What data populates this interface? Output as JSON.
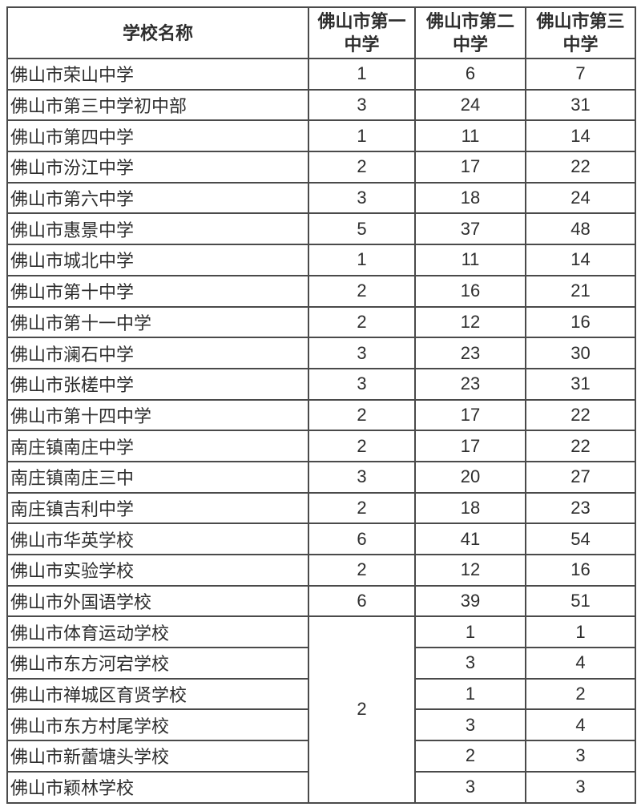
{
  "table": {
    "header": {
      "col0": "学校名称",
      "col1": "佛山市第一中学",
      "col2": "佛山市第二中学",
      "col3": "佛山市第三中学"
    },
    "rows": [
      {
        "name": "佛山市荣山中学",
        "v1": "1",
        "v2": "6",
        "v3": "7"
      },
      {
        "name": "佛山市第三中学初中部",
        "v1": "3",
        "v2": "24",
        "v3": "31"
      },
      {
        "name": "佛山市第四中学",
        "v1": "1",
        "v2": "11",
        "v3": "14"
      },
      {
        "name": "佛山市汾江中学",
        "v1": "2",
        "v2": "17",
        "v3": "22"
      },
      {
        "name": "佛山市第六中学",
        "v1": "3",
        "v2": "18",
        "v3": "24"
      },
      {
        "name": "佛山市惠景中学",
        "v1": "5",
        "v2": "37",
        "v3": "48"
      },
      {
        "name": "佛山市城北中学",
        "v1": "1",
        "v2": "11",
        "v3": "14"
      },
      {
        "name": "佛山市第十中学",
        "v1": "2",
        "v2": "16",
        "v3": "21"
      },
      {
        "name": "佛山市第十一中学",
        "v1": "2",
        "v2": "12",
        "v3": "16"
      },
      {
        "name": "佛山市澜石中学",
        "v1": "3",
        "v2": "23",
        "v3": "30"
      },
      {
        "name": "佛山市张槎中学",
        "v1": "3",
        "v2": "23",
        "v3": "31"
      },
      {
        "name": "佛山市第十四中学",
        "v1": "2",
        "v2": "17",
        "v3": "22"
      },
      {
        "name": "南庄镇南庄中学",
        "v1": "2",
        "v2": "17",
        "v3": "22"
      },
      {
        "name": "南庄镇南庄三中",
        "v1": "3",
        "v2": "20",
        "v3": "27"
      },
      {
        "name": "南庄镇吉利中学",
        "v1": "2",
        "v2": "18",
        "v3": "23"
      },
      {
        "name": "佛山市华英学校",
        "v1": "6",
        "v2": "41",
        "v3": "54"
      },
      {
        "name": "佛山市实验学校",
        "v1": "2",
        "v2": "12",
        "v3": "16"
      },
      {
        "name": "佛山市外国语学校",
        "v1": "6",
        "v2": "39",
        "v3": "51"
      }
    ],
    "merged_cell": {
      "value": "2",
      "rowspan": 6
    },
    "merged_rows": [
      {
        "name": "佛山市体育运动学校",
        "v2": "1",
        "v3": "1"
      },
      {
        "name": "佛山市东方河宕学校",
        "v2": "3",
        "v3": "4"
      },
      {
        "name": "佛山市禅城区育贤学校",
        "v2": "1",
        "v3": "2"
      },
      {
        "name": "佛山市东方村尾学校",
        "v2": "3",
        "v3": "4"
      },
      {
        "name": "佛山市新蕾塘头学校",
        "v2": "2",
        "v3": "3"
      },
      {
        "name": "佛山市颖林学校",
        "v2": "3",
        "v3": "3"
      }
    ]
  },
  "colors": {
    "border": "#4a4a4a",
    "text": "#2e2e2e",
    "background": "#ffffff"
  }
}
